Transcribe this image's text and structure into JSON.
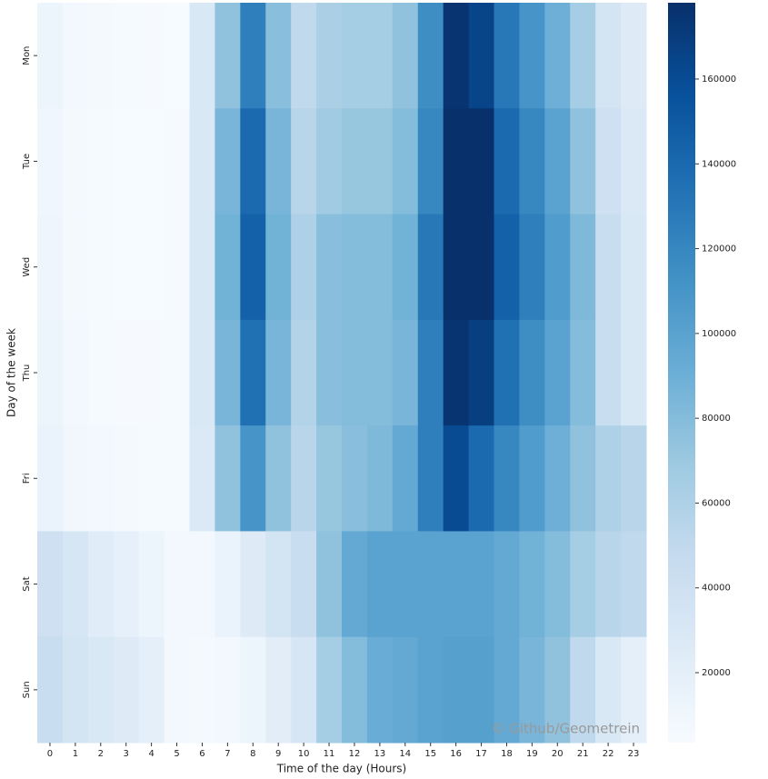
{
  "chart_data": {
    "type": "heatmap",
    "xlabel": "Time of the day (Hours)",
    "ylabel": "Day of the week",
    "annotation": "© Github/Geometrein",
    "colormap": "Blues",
    "x": [
      0,
      1,
      2,
      3,
      4,
      5,
      6,
      7,
      8,
      9,
      10,
      11,
      12,
      13,
      14,
      15,
      16,
      17,
      18,
      19,
      20,
      21,
      22,
      23
    ],
    "y": [
      "Mon",
      "Tue",
      "Wed",
      "Thu",
      "Fri",
      "Sat",
      "Sun"
    ],
    "values": [
      [
        12000,
        8000,
        6000,
        5000,
        4500,
        4000,
        30000,
        75000,
        125000,
        78000,
        50000,
        62000,
        65000,
        65000,
        75000,
        115000,
        175000,
        165000,
        130000,
        110000,
        90000,
        65000,
        35000,
        25000
      ],
      [
        10000,
        6000,
        5000,
        4000,
        4000,
        4500,
        30000,
        85000,
        140000,
        85000,
        55000,
        68000,
        72000,
        72000,
        80000,
        120000,
        178000,
        178000,
        140000,
        120000,
        100000,
        75000,
        40000,
        28000
      ],
      [
        11000,
        6500,
        5000,
        4000,
        4000,
        4500,
        30000,
        88000,
        145000,
        88000,
        60000,
        78000,
        80000,
        80000,
        88000,
        130000,
        178000,
        178000,
        145000,
        125000,
        105000,
        82000,
        45000,
        30000
      ],
      [
        12000,
        7000,
        5500,
        4500,
        4500,
        5000,
        30000,
        85000,
        135000,
        85000,
        58000,
        78000,
        80000,
        80000,
        85000,
        125000,
        175000,
        168000,
        135000,
        115000,
        100000,
        80000,
        45000,
        30000
      ],
      [
        15000,
        9000,
        7000,
        6000,
        5500,
        5500,
        28000,
        75000,
        110000,
        75000,
        55000,
        72000,
        78000,
        82000,
        95000,
        125000,
        160000,
        140000,
        120000,
        105000,
        90000,
        75000,
        60000,
        55000
      ],
      [
        40000,
        32000,
        24000,
        18000,
        13000,
        7000,
        8000,
        15000,
        25000,
        35000,
        45000,
        75000,
        95000,
        100000,
        100000,
        100000,
        100000,
        100000,
        95000,
        88000,
        80000,
        65000,
        55000,
        50000
      ],
      [
        45000,
        35000,
        30000,
        25000,
        20000,
        8000,
        6000,
        7000,
        13000,
        22000,
        32000,
        65000,
        80000,
        92000,
        95000,
        100000,
        102000,
        102000,
        95000,
        85000,
        75000,
        50000,
        30000,
        20000
      ]
    ],
    "zlim": [
      3500,
      178000
    ],
    "zticks": [
      20000,
      40000,
      60000,
      80000,
      100000,
      120000,
      140000,
      160000
    ]
  }
}
